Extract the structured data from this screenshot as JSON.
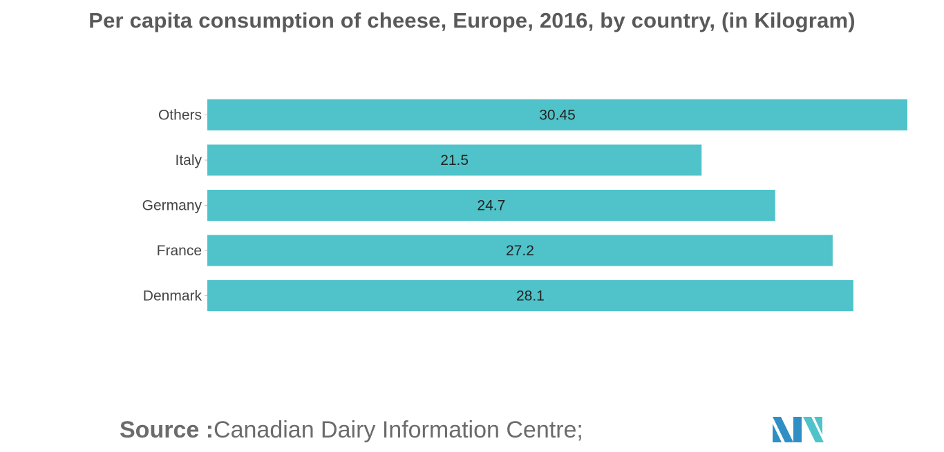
{
  "chart_data": {
    "type": "bar",
    "orientation": "horizontal",
    "title": "Per capita consumption of cheese, Europe, 2016, by country, (in Kilogram)",
    "categories": [
      "Others",
      "Italy",
      "Germany",
      "France",
      "Denmark"
    ],
    "values": [
      30.45,
      21.5,
      24.7,
      27.2,
      28.1
    ],
    "data_labels": [
      "30.45",
      "21.5",
      "24.7",
      "27.2",
      "28.1"
    ],
    "xlim": [
      0,
      30.45
    ],
    "bar_color": "#4fc3c9",
    "grid": false,
    "legend": "none"
  },
  "source": {
    "label": "Source :",
    "text": "Canadian Dairy Information Centre;"
  },
  "logo": {
    "icon": "mordor-intelligence-logo-icon",
    "colors": [
      "#2f8fc4",
      "#4fc3c9"
    ]
  }
}
